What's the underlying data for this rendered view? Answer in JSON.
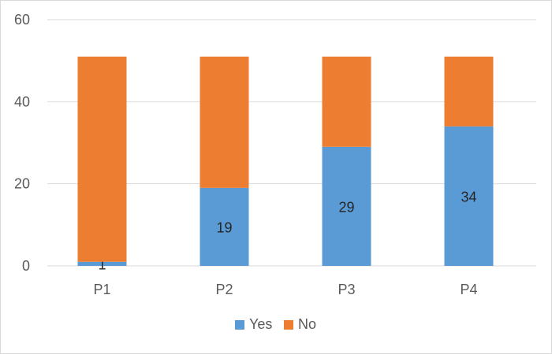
{
  "chart_data": {
    "type": "bar",
    "stacked": true,
    "title": "",
    "xlabel": "",
    "ylabel": "",
    "categories": [
      "P1",
      "P2",
      "P3",
      "P4"
    ],
    "series": [
      {
        "name": "Yes",
        "color": "#5B9BD5",
        "values": [
          1,
          19,
          29,
          34
        ],
        "data_labels": true
      },
      {
        "name": "No",
        "color": "#ED7D31",
        "values": [
          50,
          32,
          22,
          17
        ],
        "data_labels": false
      }
    ],
    "ylim": [
      0,
      60
    ],
    "yticks": [
      0,
      20,
      40,
      60
    ],
    "grid": true,
    "legend_position": "bottom"
  }
}
